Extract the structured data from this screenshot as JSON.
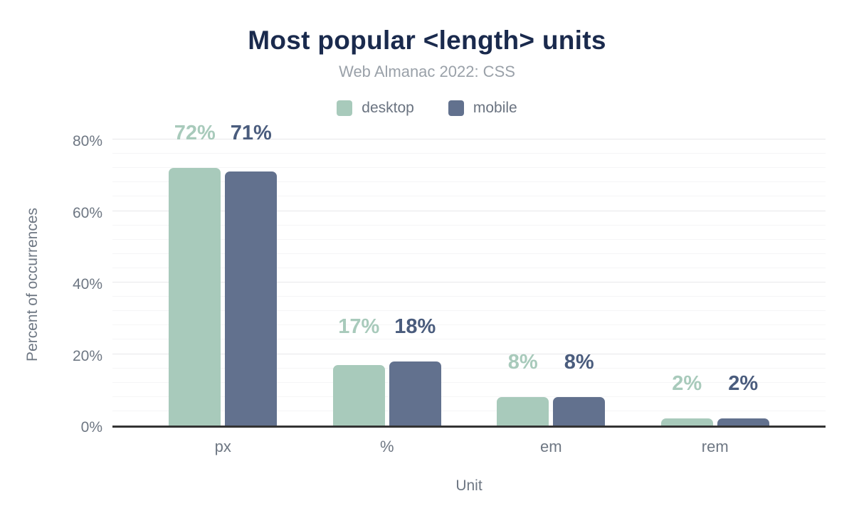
{
  "header": {
    "title": "Most popular <length> units",
    "subtitle": "Web Almanac 2022: CSS"
  },
  "colors": {
    "background": "#ffffff",
    "title_text": "#1a2a4d",
    "subtitle_text": "#9aa1a9",
    "axis_text": "#6e7783",
    "legend_text": "#6a7380",
    "axis_line": "#333333",
    "grid_minor": "#f5f5f6",
    "grid_major": "#e8e8ea",
    "desktop": "#a8cabb",
    "mobile": "#62718e",
    "mobile_value_label": "#4a5c7d"
  },
  "chart_data": {
    "type": "bar",
    "title": "Most popular <length> units",
    "subtitle": "Web Almanac 2022: CSS",
    "categories": [
      "px",
      "%",
      "em",
      "rem"
    ],
    "series": [
      {
        "name": "desktop",
        "color": "#a8cabb",
        "label_color": "#a8cabb",
        "values": [
          72,
          17,
          8,
          2
        ],
        "labels": [
          "72%",
          "17%",
          "8%",
          "2%"
        ]
      },
      {
        "name": "mobile",
        "color": "#62718e",
        "label_color": "#4a5c7d",
        "values": [
          71,
          18,
          8,
          2
        ],
        "labels": [
          "71%",
          "18%",
          "8%",
          "2%"
        ]
      }
    ],
    "xlabel": "Unit",
    "ylabel": "Percent of occurrences",
    "ylim": [
      0,
      80
    ],
    "ytick_values": [
      0,
      20,
      40,
      60,
      80
    ],
    "yticks": [
      "0%",
      "20%",
      "40%",
      "60%",
      "80%"
    ],
    "grid": true,
    "grid_minor_step": 4,
    "grid_major_step": 20,
    "legend_position": "top"
  }
}
